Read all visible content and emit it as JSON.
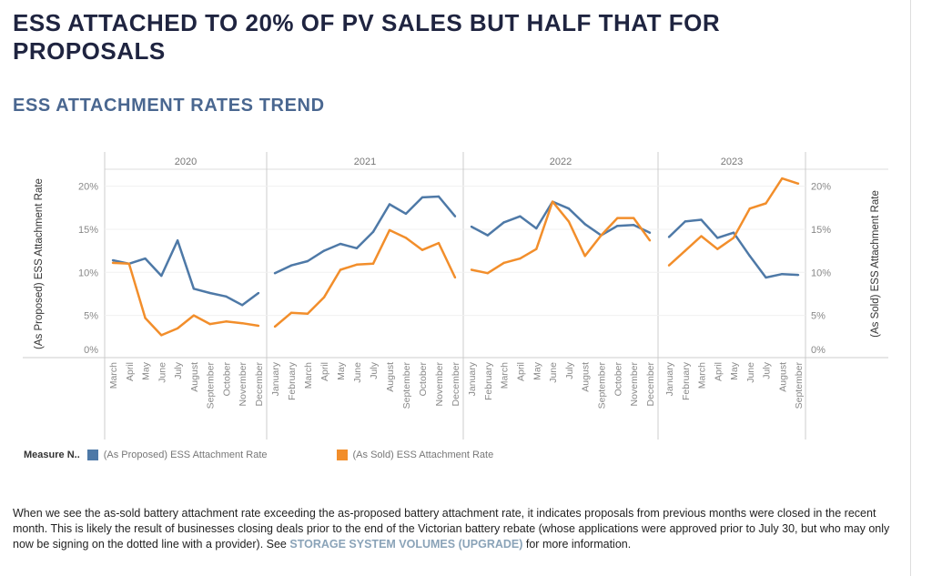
{
  "header": {
    "title": "ESS ATTACHED TO 20% OF PV SALES BUT HALF THAT FOR PROPOSALS",
    "subtitle": "ESS ATTACHMENT RATES TREND"
  },
  "chart_data": {
    "type": "line",
    "title": "ESS ATTACHMENT RATES TREND",
    "ylabel_left": "(As Proposed) ESS Attachment Rate",
    "ylabel_right": "(As Sold) ESS Attachment Rate",
    "yticks": [
      "0%",
      "5%",
      "10%",
      "15%",
      "20%"
    ],
    "ytick_values": [
      0,
      5,
      10,
      15,
      20
    ],
    "ylim": [
      0,
      21.5
    ],
    "grid": true,
    "panels": [
      {
        "year": "2020",
        "months": [
          "March",
          "April",
          "May",
          "June",
          "July",
          "August",
          "September",
          "October",
          "November",
          "December"
        ],
        "proposed": [
          11.4,
          11.0,
          11.6,
          9.6,
          13.7,
          8.1,
          7.6,
          7.2,
          6.2,
          7.6
        ],
        "sold": [
          11.1,
          11.0,
          4.7,
          2.7,
          3.5,
          5.0,
          4.0,
          4.3,
          4.1,
          3.8
        ]
      },
      {
        "year": "2021",
        "months": [
          "January",
          "February",
          "March",
          "April",
          "May",
          "June",
          "July",
          "August",
          "September",
          "October",
          "November",
          "December"
        ],
        "proposed": [
          9.9,
          10.8,
          11.3,
          12.5,
          13.3,
          12.8,
          14.7,
          17.9,
          16.8,
          18.7,
          18.8,
          16.5
        ],
        "sold": [
          3.7,
          5.3,
          5.2,
          7.1,
          10.3,
          10.9,
          11.0,
          14.9,
          14.0,
          12.6,
          13.4,
          9.4
        ]
      },
      {
        "year": "2022",
        "months": [
          "January",
          "February",
          "March",
          "April",
          "May",
          "June",
          "July",
          "August",
          "September",
          "October",
          "November",
          "December"
        ],
        "proposed": [
          15.3,
          14.3,
          15.8,
          16.5,
          15.1,
          18.2,
          17.4,
          15.6,
          14.3,
          15.4,
          15.5,
          14.6
        ],
        "sold": [
          10.3,
          9.9,
          11.1,
          11.6,
          12.7,
          18.2,
          15.9,
          11.9,
          14.3,
          16.3,
          16.3,
          13.7
        ]
      },
      {
        "year": "2023",
        "months": [
          "January",
          "February",
          "March",
          "April",
          "May",
          "June",
          "July",
          "August",
          "September"
        ],
        "proposed": [
          14.1,
          15.9,
          16.1,
          14.0,
          14.6,
          11.9,
          9.4,
          9.8,
          9.7
        ],
        "sold": [
          10.8,
          12.5,
          14.2,
          12.7,
          14.0,
          17.4,
          18.0,
          20.9,
          20.3
        ]
      }
    ],
    "series": [
      {
        "name": "(As Proposed) ESS Attachment Rate",
        "color": "#4e79a7"
      },
      {
        "name": "(As Sold) ESS Attachment Rate",
        "color": "#f28e2b"
      }
    ],
    "legend": {
      "title": "Measure N..",
      "placement": "bottom-left"
    }
  },
  "note": {
    "text": "When we see the as-sold battery attachment rate exceeding the as-proposed battery attachment rate, it indicates proposals from previous months were closed in the recent month. This is likely the result of businesses closing deals prior to the end of the Victorian battery rebate (whose applications were approved prior to July 30, but who may only now be signing on the dotted line with a provider). See ",
    "link": "STORAGE SYSTEM VOLUMES (UPGRADE)",
    "after": " for more information."
  }
}
